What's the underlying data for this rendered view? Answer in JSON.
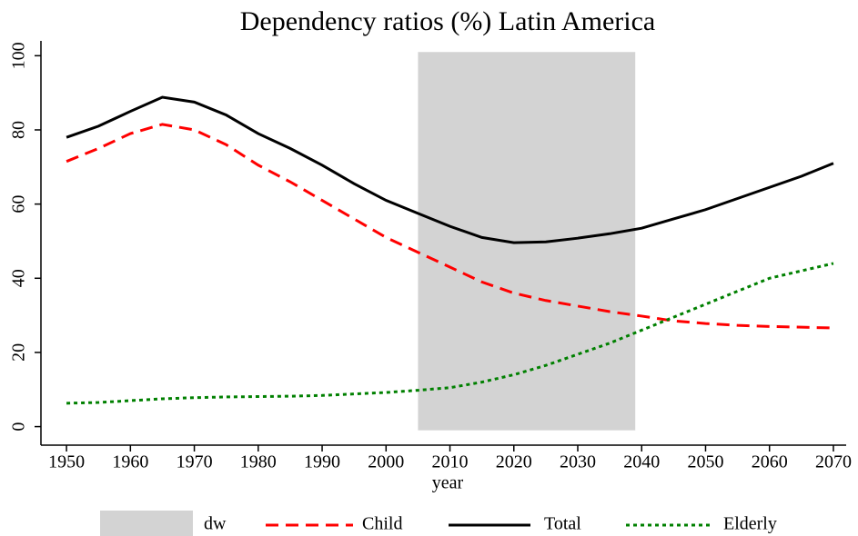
{
  "chart_data": {
    "type": "line",
    "title": "Dependency ratios (%) Latin America",
    "xlabel": "year",
    "x": [
      1950,
      1955,
      1960,
      1965,
      1970,
      1975,
      1980,
      1985,
      1990,
      1995,
      2000,
      2005,
      2010,
      2015,
      2020,
      2025,
      2030,
      2035,
      2040,
      2045,
      2050,
      2055,
      2060,
      2065,
      2070
    ],
    "shaded_region": {
      "name": "dw",
      "color": "#d3d3d3",
      "x": [
        2005,
        2039
      ],
      "y": [
        -1,
        101
      ]
    },
    "series": [
      {
        "name": "Child",
        "color": "#ff0000",
        "linestyle": "dashed",
        "values": [
          71.5,
          75,
          79,
          81.5,
          80,
          76,
          70.5,
          66,
          61,
          56,
          51,
          47,
          43,
          39,
          36,
          34,
          32.5,
          31,
          29.8,
          28.5,
          27.8,
          27.3,
          27,
          26.8,
          26.6
        ]
      },
      {
        "name": "Total",
        "color": "#000000",
        "linestyle": "solid",
        "values": [
          78,
          81,
          85,
          88.8,
          87.5,
          84,
          79,
          75,
          70.5,
          65.5,
          61,
          57.5,
          54,
          51,
          49.6,
          49.8,
          50.8,
          52,
          53.5,
          56,
          58.5,
          61.5,
          64.5,
          67.5,
          71
        ]
      },
      {
        "name": "Elderly",
        "color": "#008000",
        "linestyle": "dotted",
        "values": [
          6.3,
          6.5,
          7,
          7.5,
          7.8,
          8,
          8.1,
          8.2,
          8.4,
          8.8,
          9.2,
          9.8,
          10.5,
          12,
          14,
          16.5,
          19.5,
          22.5,
          26,
          29.5,
          33,
          36.5,
          40,
          42,
          44
        ]
      }
    ],
    "xlim": [
      1946,
      2072
    ],
    "xticks": [
      1950,
      1960,
      1970,
      1980,
      1990,
      2000,
      2010,
      2020,
      2030,
      2040,
      2050,
      2060,
      2070
    ],
    "ylim": [
      -5,
      104
    ],
    "yticks": [
      0,
      20,
      40,
      60,
      80,
      100
    ],
    "grid": false
  }
}
